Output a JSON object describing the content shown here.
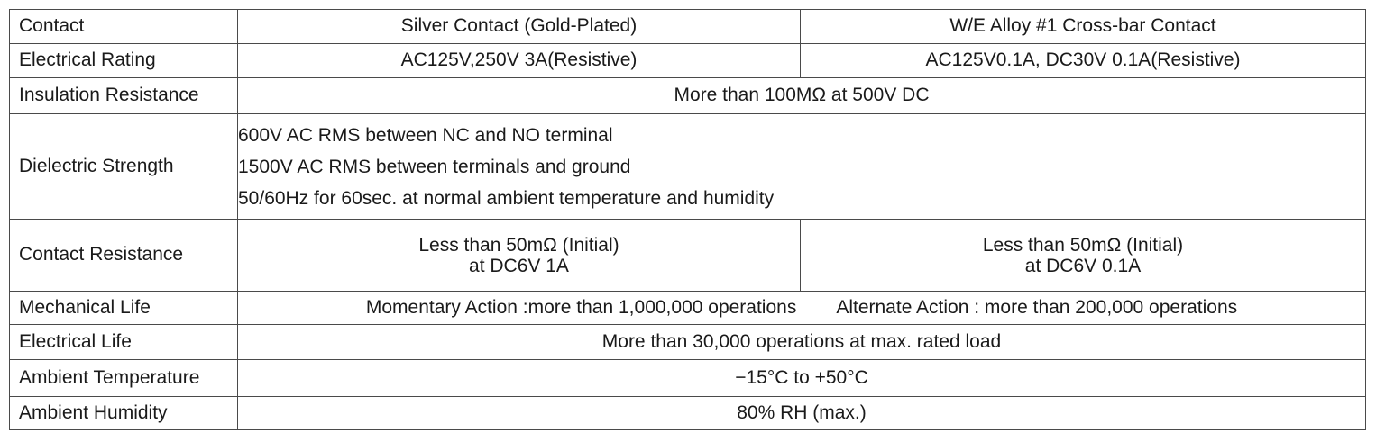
{
  "table": {
    "header": {
      "label": "Contact",
      "col_a": "Silver Contact (Gold-Plated)",
      "col_b": "W/E Alloy #1 Cross-bar Contact"
    },
    "electrical_rating": {
      "label": "Electrical Rating",
      "col_a": "AC125V,250V 3A(Resistive)",
      "col_b": "AC125V0.1A, DC30V 0.1A(Resistive)"
    },
    "insulation_resistance": {
      "label": "Insulation Resistance",
      "value": "More than 100MΩ at 500V DC"
    },
    "dielectric_strength": {
      "label": "Dielectric Strength",
      "lines": [
        "600V AC RMS between NC and NO terminal",
        "1500V AC RMS between terminals and ground",
        "50/60Hz for 60sec. at normal ambient temperature and humidity"
      ]
    },
    "contact_resistance": {
      "label": "Contact Resistance",
      "col_a_line1": "Less than 50mΩ (Initial)",
      "col_a_line2": "at DC6V 1A",
      "col_b_line1": "Less than 50mΩ (Initial)",
      "col_b_line2": "at DC6V 0.1A"
    },
    "mechanical_life": {
      "label": "Mechanical Life",
      "momentary": "Momentary Action :more than 1,000,000 operations",
      "alternate": "Alternate Action : more than 200,000 operations"
    },
    "electrical_life": {
      "label": "Electrical Life",
      "value": "More than 30,000 operations at max. rated load"
    },
    "ambient_temperature": {
      "label": "Ambient Temperature",
      "value": "−15°C to +50°C"
    },
    "ambient_humidity": {
      "label": "Ambient Humidity",
      "value": "80% RH (max.)"
    }
  }
}
